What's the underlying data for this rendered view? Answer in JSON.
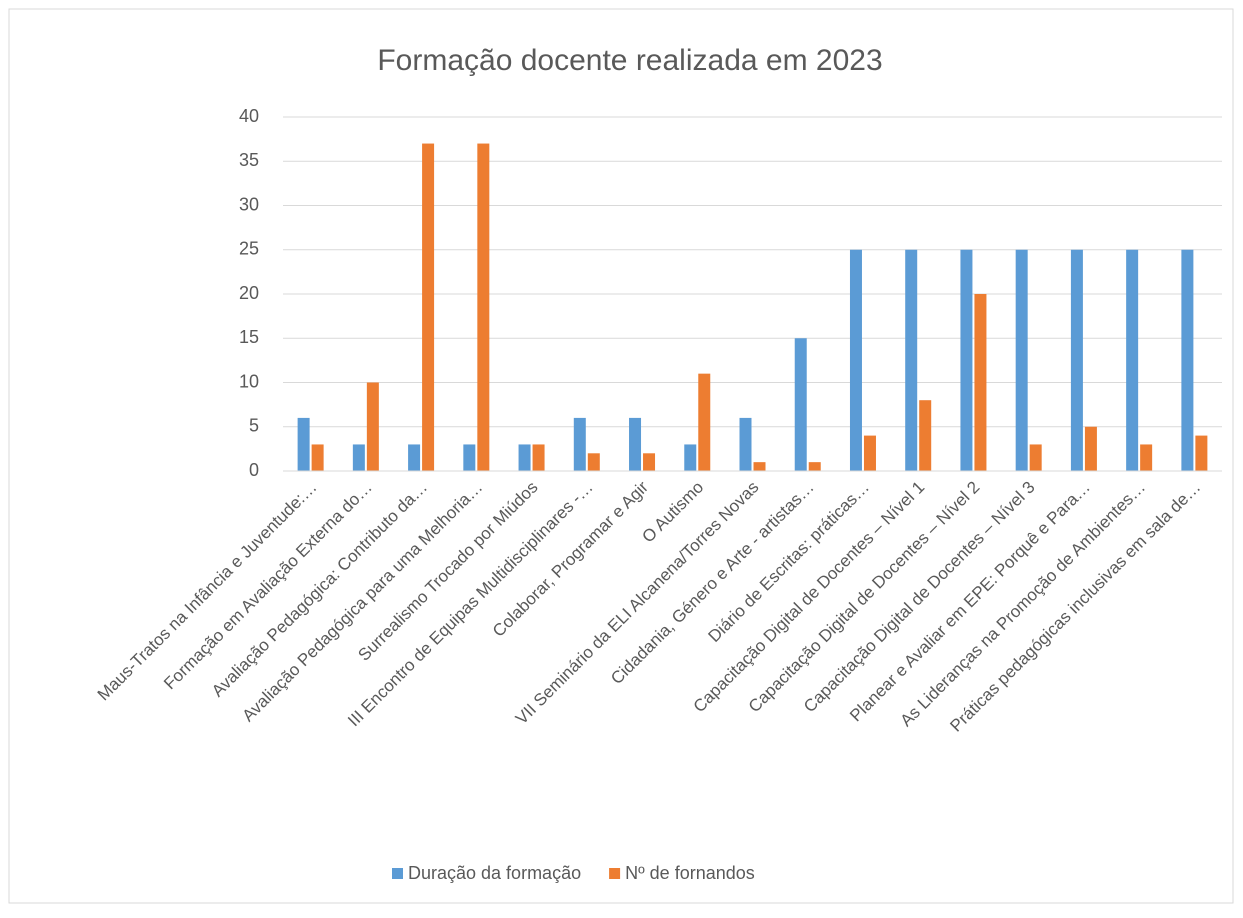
{
  "chart_data": {
    "type": "bar",
    "title": "Formação docente realizada em 2023",
    "categories": [
      "Maus-Tratos na Infância e Juventude:…",
      "Formação em Avaliação Externa do…",
      "Avaliação Pedagógica: Contributo da…",
      "Avaliação Pedagógica para uma Melhoria…",
      "Surrealismo Trocado por Miúdos",
      "III Encontro de Equipas Multidisciplinares -…",
      "Colaborar, Programar e Agir",
      "O Autismo",
      "VII Seminário da ELI Alcanena/Torres Novas",
      "Cidadania, Género e Arte - artistas…",
      "Diário de Escritas: práticas…",
      "Capacitação Digital de Docentes – Nível 1",
      "Capacitação Digital de Docentes – Nível 2",
      "Capacitação Digital de Docentes – Nível 3",
      "Planear e Avaliar em EPE: Porquê e Para…",
      "As Lideranças na Promoção de Ambientes…",
      "Práticas pedagógicas inclusivas em sala de…"
    ],
    "series": [
      {
        "name": "Duração da formação",
        "color": "#5b9bd5",
        "values": [
          6,
          3,
          3,
          3,
          3,
          6,
          6,
          3,
          6,
          15,
          25,
          25,
          25,
          25,
          25,
          25,
          25
        ]
      },
      {
        "name": "Nº de fornandos",
        "color": "#ed7d31",
        "values": [
          3,
          10,
          37,
          37,
          3,
          2,
          2,
          11,
          1,
          1,
          4,
          8,
          20,
          3,
          5,
          3,
          4
        ]
      }
    ],
    "ylim": [
      0,
      40
    ],
    "yticks": [
      0,
      5,
      10,
      15,
      20,
      25,
      30,
      35,
      40
    ],
    "grid": true,
    "legend": "bottom"
  }
}
